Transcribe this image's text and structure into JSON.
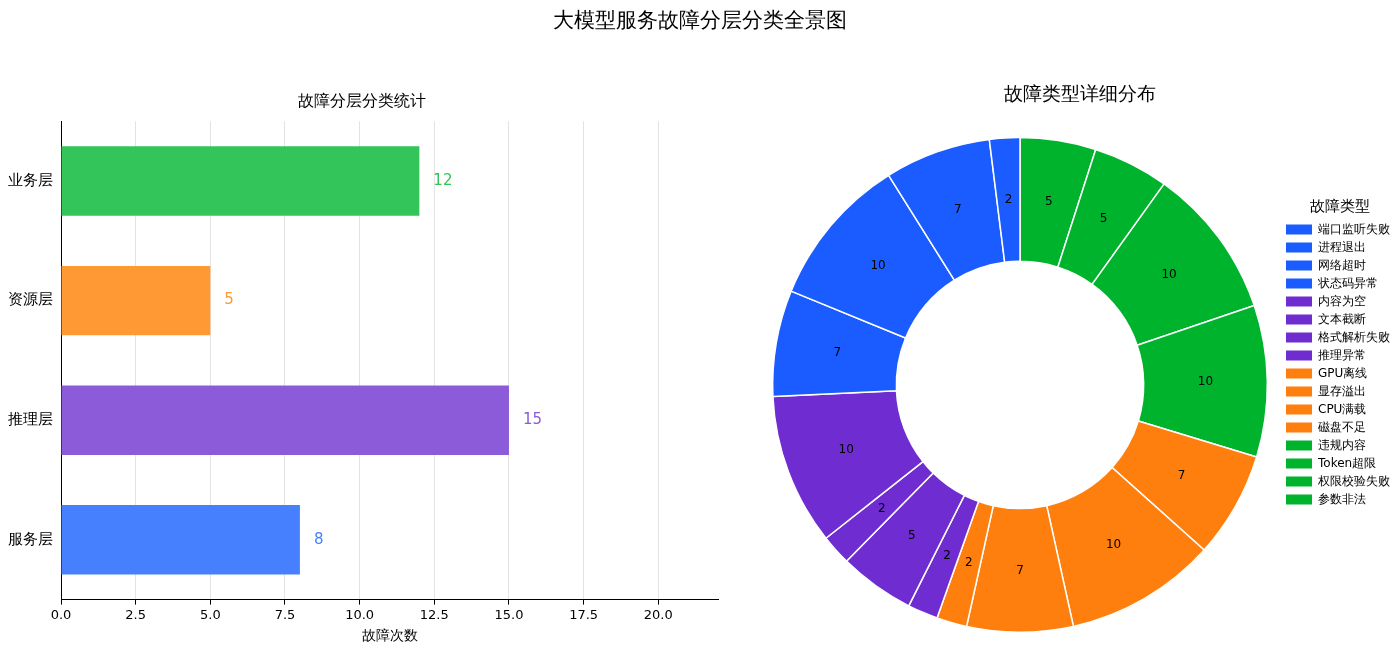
{
  "chart_data": [
    {
      "type": "other",
      "title": "大模型服务故障分层分类全景图"
    },
    {
      "type": "bar",
      "title": "故障分层分类统计",
      "xlabel": "故障次数",
      "orientation": "horizontal",
      "categories": [
        "业务层",
        "资源层",
        "推理层",
        "服务层"
      ],
      "values": [
        12,
        5,
        15,
        8
      ],
      "colors": [
        "#33c45a",
        "#ff9933",
        "#8b5bd9",
        "#4680ff"
      ],
      "xlim": [
        0,
        22
      ],
      "xticks": [
        {
          "value": 0,
          "label": "0.0"
        },
        {
          "value": 2.5,
          "label": "2.5"
        },
        {
          "value": 5,
          "label": "5.0"
        },
        {
          "value": 7.5,
          "label": "7.5"
        },
        {
          "value": 10,
          "label": "10.0"
        },
        {
          "value": 12.5,
          "label": "12.5"
        },
        {
          "value": 15,
          "label": "15.0"
        },
        {
          "value": 17.5,
          "label": "17.5"
        },
        {
          "value": 20,
          "label": "20.0"
        }
      ],
      "grid": "x",
      "data_labels": true
    },
    {
      "type": "donut",
      "title": "故障类型详细分布",
      "legend_title": "故障类型",
      "legend": "right",
      "data_labels": true,
      "categories": [
        "端口监听失败",
        "进程退出",
        "网络超时",
        "状态码异常",
        "内容为空",
        "文本截断",
        "格式解析失败",
        "推理异常",
        "GPU离线",
        "显存溢出",
        "CPU满载",
        "磁盘不足",
        "违规内容",
        "Token超限",
        "权限校验失败",
        "参数非法"
      ],
      "values": [
        2,
        7,
        10,
        7,
        10,
        2,
        5,
        2,
        2,
        7,
        10,
        7,
        10,
        10,
        5,
        5
      ],
      "colors": [
        "#1a5cff",
        "#1a5cff",
        "#1a5cff",
        "#1a5cff",
        "#6f2dd1",
        "#6f2dd1",
        "#6f2dd1",
        "#6f2dd1",
        "#ff7f0e",
        "#ff7f0e",
        "#ff7f0e",
        "#ff7f0e",
        "#00b32c",
        "#00b32c",
        "#00b32c",
        "#00b32c"
      ]
    }
  ]
}
